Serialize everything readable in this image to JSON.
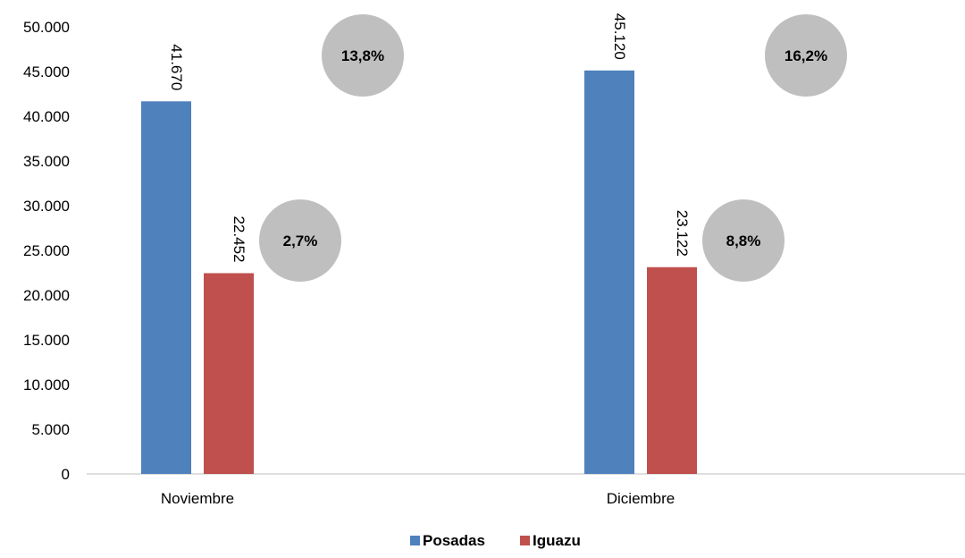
{
  "chart_data": {
    "type": "bar",
    "categories": [
      "Noviembre",
      "Diciembre"
    ],
    "series": [
      {
        "name": "Posadas",
        "values": [
          41670,
          45120
        ],
        "labels": [
          "41.670",
          "45.120"
        ],
        "color": "#4F81BD"
      },
      {
        "name": "Iguazu",
        "values": [
          22452,
          23122
        ],
        "labels": [
          "22.452",
          "23.122"
        ],
        "color": "#C0504D"
      }
    ],
    "annotations": [
      {
        "category": "Noviembre",
        "series": "Posadas",
        "text": "13,8%"
      },
      {
        "category": "Noviembre",
        "series": "Iguazu",
        "text": "2,7%"
      },
      {
        "category": "Diciembre",
        "series": "Posadas",
        "text": "16,2%"
      },
      {
        "category": "Diciembre",
        "series": "Iguazu",
        "text": "8,8%"
      }
    ],
    "annotation_color": "#BFBFBF",
    "ylim": [
      0,
      50000
    ],
    "yticks": [
      {
        "value": 0,
        "label": "0"
      },
      {
        "value": 5000,
        "label": "5.000"
      },
      {
        "value": 10000,
        "label": "10.000"
      },
      {
        "value": 15000,
        "label": "15.000"
      },
      {
        "value": 20000,
        "label": "20.000"
      },
      {
        "value": 25000,
        "label": "25.000"
      },
      {
        "value": 30000,
        "label": "30.000"
      },
      {
        "value": 35000,
        "label": "35.000"
      },
      {
        "value": 40000,
        "label": "40.000"
      },
      {
        "value": 45000,
        "label": "45.000"
      },
      {
        "value": 50000,
        "label": "50.000"
      }
    ],
    "grid": false,
    "legend_position": "bottom"
  }
}
